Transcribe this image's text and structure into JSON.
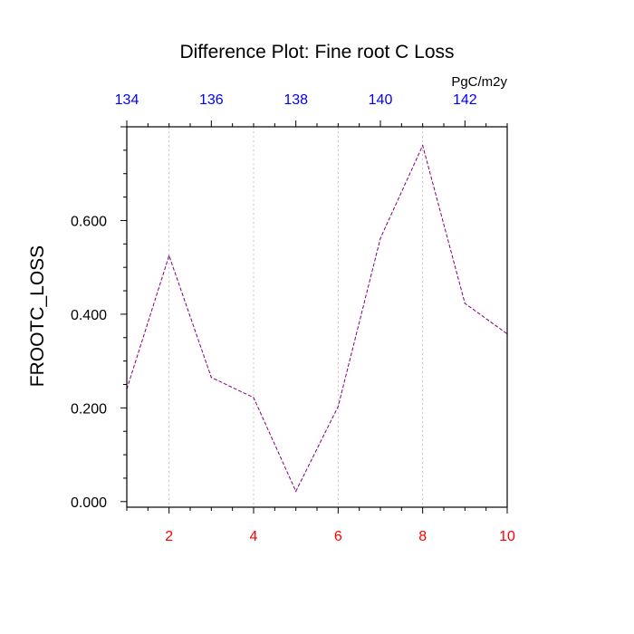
{
  "chart_data": {
    "type": "line",
    "title": "Difference Plot: Fine root C Loss",
    "ylabel": "FROOTC_LOSS",
    "units": "PgC/m2y",
    "x": [
      1,
      2,
      3,
      4,
      5,
      6,
      7,
      8,
      9,
      10
    ],
    "xlim": [
      1,
      10
    ],
    "ylim": [
      -0.012,
      0.8
    ],
    "bottom_ticks": [
      2,
      4,
      6,
      8,
      10
    ],
    "bottom_tick_labels": [
      "2",
      "4",
      "6",
      "8",
      "10"
    ],
    "bottom_tick_color": "#ff0000",
    "top_axis": {
      "lim": [
        134,
        143
      ],
      "ticks": [
        134,
        136,
        138,
        140,
        142
      ],
      "tick_labels": [
        "134",
        "136",
        "138",
        "140",
        "142"
      ],
      "color": "#0000ff"
    },
    "y_ticks": [
      0,
      0.2,
      0.4,
      0.6
    ],
    "y_tick_labels": [
      "0.000",
      "0.200",
      "0.400",
      "0.600"
    ],
    "grid": "vertical dashed at major x ticks",
    "series": [
      {
        "values": [
          0.24,
          0.525,
          0.265,
          0.222,
          0.022,
          0.203,
          0.562,
          0.76,
          0.423,
          0.358
        ],
        "color": "#800080",
        "style": "dashed"
      }
    ]
  }
}
